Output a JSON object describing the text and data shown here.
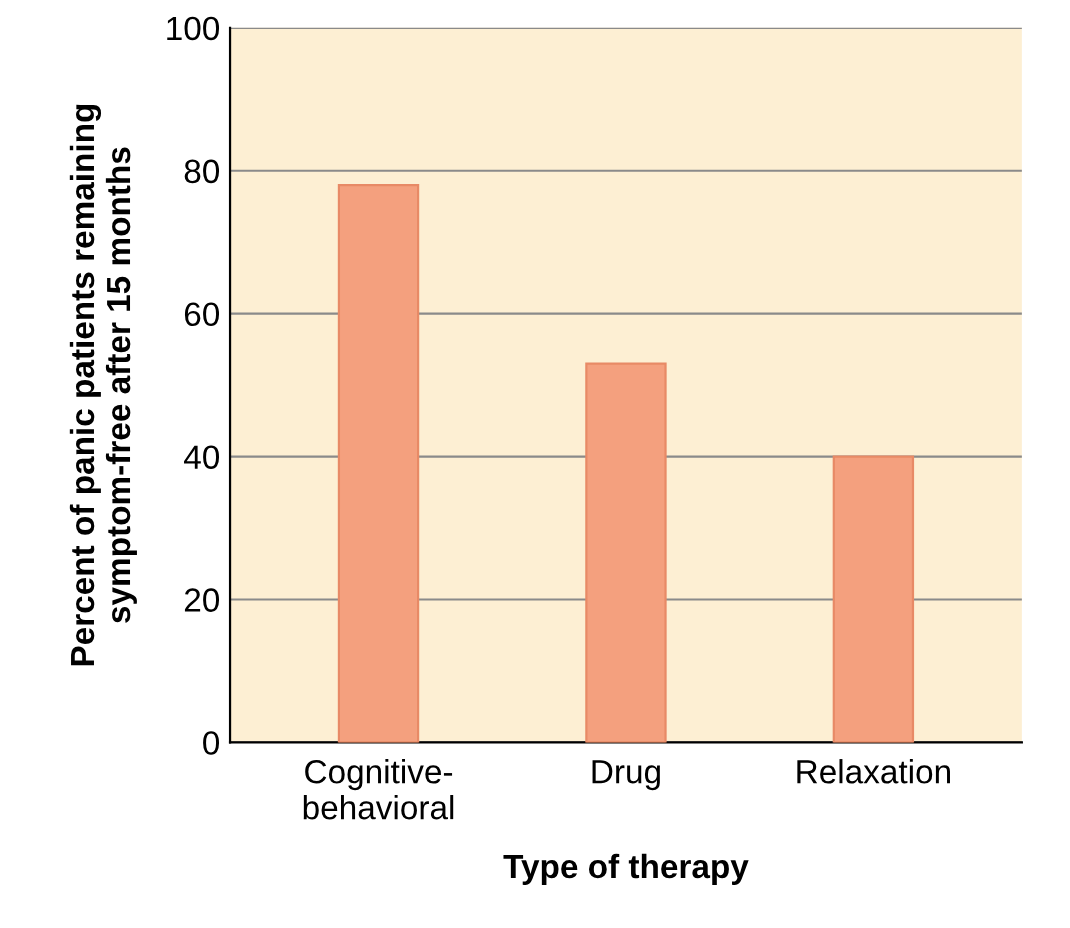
{
  "chart_data": {
    "type": "bar",
    "xlabel": "Type of therapy",
    "ylabel": "Percent of panic patients remaining\nsymptom-free after 15 months",
    "categories": [
      "Cognitive-\nbehavioral",
      "Drug",
      "Relaxation"
    ],
    "values": [
      78,
      53,
      40
    ],
    "color": "#f4a07e",
    "ylim": [
      0,
      100
    ],
    "yticks": [
      0,
      20,
      40,
      60,
      80,
      100
    ],
    "grid": "y"
  }
}
